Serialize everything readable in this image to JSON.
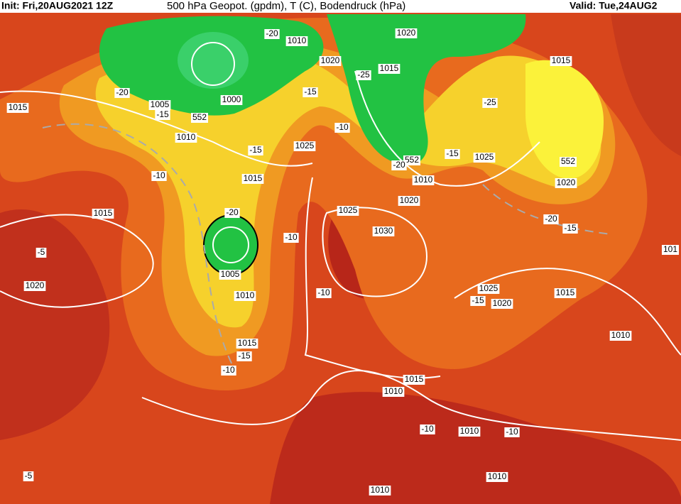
{
  "header": {
    "init": "Init: Fri,20AUG2021 12Z",
    "product": "500 hPa Geopot. (gpdm), T (C), Bodendruck (hPa)",
    "valid": "Valid: Tue,24AUG2"
  },
  "labels": [
    "1015",
    "1010",
    "1020",
    "-20",
    "1020",
    "-25",
    "1015",
    "1015",
    "-20",
    "-15",
    "1000",
    "1005",
    "-15",
    "-25",
    "552",
    "1010",
    "-10",
    "1025",
    "-15",
    "552",
    "-20",
    "-15",
    "1025",
    "552",
    "1020",
    "-10",
    "1015",
    "1010",
    "1020",
    "1015",
    "-20",
    "1025",
    "1030",
    "-20",
    "-15",
    "-10",
    "-5",
    "101",
    "1005",
    "1020",
    "1010",
    "-10",
    "1025",
    "1015",
    "-15",
    "1020",
    "1010",
    "1015",
    "-15",
    "-10",
    "1015",
    "1010",
    "-10",
    "1010",
    "-10",
    "-5",
    "1010",
    "1010"
  ]
}
